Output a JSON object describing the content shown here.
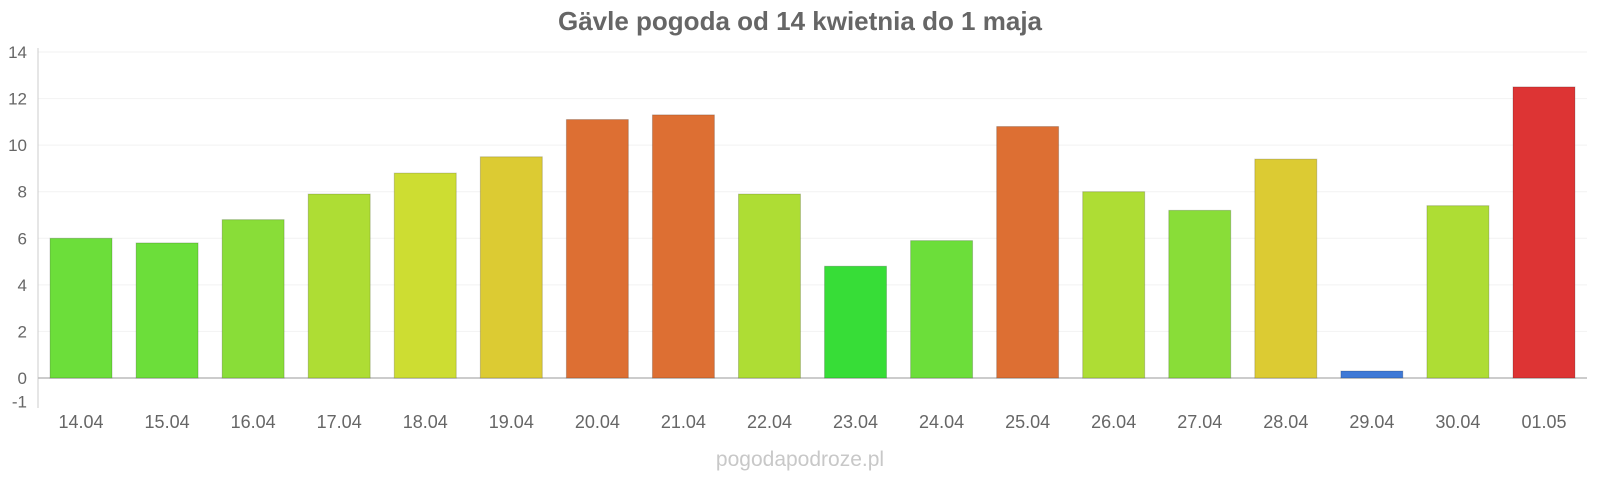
{
  "chart_data": {
    "type": "bar",
    "title": "Gävle pogoda od 14 kwietnia do 1 maja",
    "categories": [
      "14.04",
      "15.04",
      "16.04",
      "17.04",
      "18.04",
      "19.04",
      "20.04",
      "21.04",
      "22.04",
      "23.04",
      "24.04",
      "25.04",
      "26.04",
      "27.04",
      "28.04",
      "29.04",
      "30.04",
      "01.05"
    ],
    "values": [
      6.0,
      5.8,
      6.8,
      7.9,
      8.8,
      9.5,
      11.1,
      11.3,
      7.9,
      4.8,
      5.9,
      10.8,
      8.0,
      7.2,
      9.4,
      0.3,
      7.4,
      12.5
    ],
    "bar_colors": [
      "#6cde3a",
      "#6cde3a",
      "#89dd38",
      "#aedd34",
      "#cddd32",
      "#dccb33",
      "#dd6f33",
      "#dd6f33",
      "#aedd34",
      "#37dd37",
      "#6cde3a",
      "#dd6f33",
      "#aedd34",
      "#89dd38",
      "#dccb33",
      "#3f79d6",
      "#aedd34",
      "#dd3434"
    ],
    "ylim": [
      -1,
      14
    ],
    "yticks": [
      -1,
      0,
      2,
      4,
      6,
      8,
      10,
      12,
      14
    ],
    "xlabel": "",
    "ylabel": "",
    "grid": true,
    "legend": "none"
  },
  "watermark": "pogodapodroze.pl"
}
